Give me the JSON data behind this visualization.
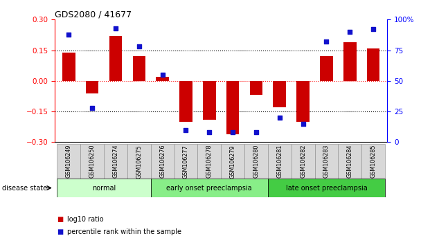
{
  "title": "GDS2080 / 41677",
  "samples": [
    "GSM106249",
    "GSM106250",
    "GSM106274",
    "GSM106275",
    "GSM106276",
    "GSM106277",
    "GSM106278",
    "GSM106279",
    "GSM106280",
    "GSM106281",
    "GSM106282",
    "GSM106283",
    "GSM106284",
    "GSM106285"
  ],
  "log10_ratio": [
    0.14,
    -0.06,
    0.22,
    0.12,
    0.02,
    -0.2,
    -0.19,
    -0.26,
    -0.07,
    -0.13,
    -0.2,
    0.12,
    0.19,
    0.16
  ],
  "percentile_rank": [
    88,
    28,
    93,
    78,
    55,
    10,
    8,
    8,
    8,
    20,
    15,
    82,
    90,
    92
  ],
  "bar_color": "#cc0000",
  "dot_color": "#1111cc",
  "groups": [
    {
      "label": "normal",
      "start": 0,
      "end": 3,
      "color": "#ccffcc"
    },
    {
      "label": "early onset preeclampsia",
      "start": 4,
      "end": 8,
      "color": "#88ee88"
    },
    {
      "label": "late onset preeclampsia",
      "start": 9,
      "end": 13,
      "color": "#44cc44"
    }
  ],
  "ylim_left": [
    -0.3,
    0.3
  ],
  "ylim_right": [
    0,
    100
  ],
  "yticks_left": [
    -0.3,
    -0.15,
    0.0,
    0.15,
    0.3
  ],
  "yticks_right": [
    0,
    25,
    50,
    75,
    100
  ],
  "hlines_black": [
    -0.15,
    0.15
  ],
  "hline_red": 0.0,
  "legend_log10": "log10 ratio",
  "legend_pct": "percentile rank within the sample",
  "disease_state_label": "disease state"
}
